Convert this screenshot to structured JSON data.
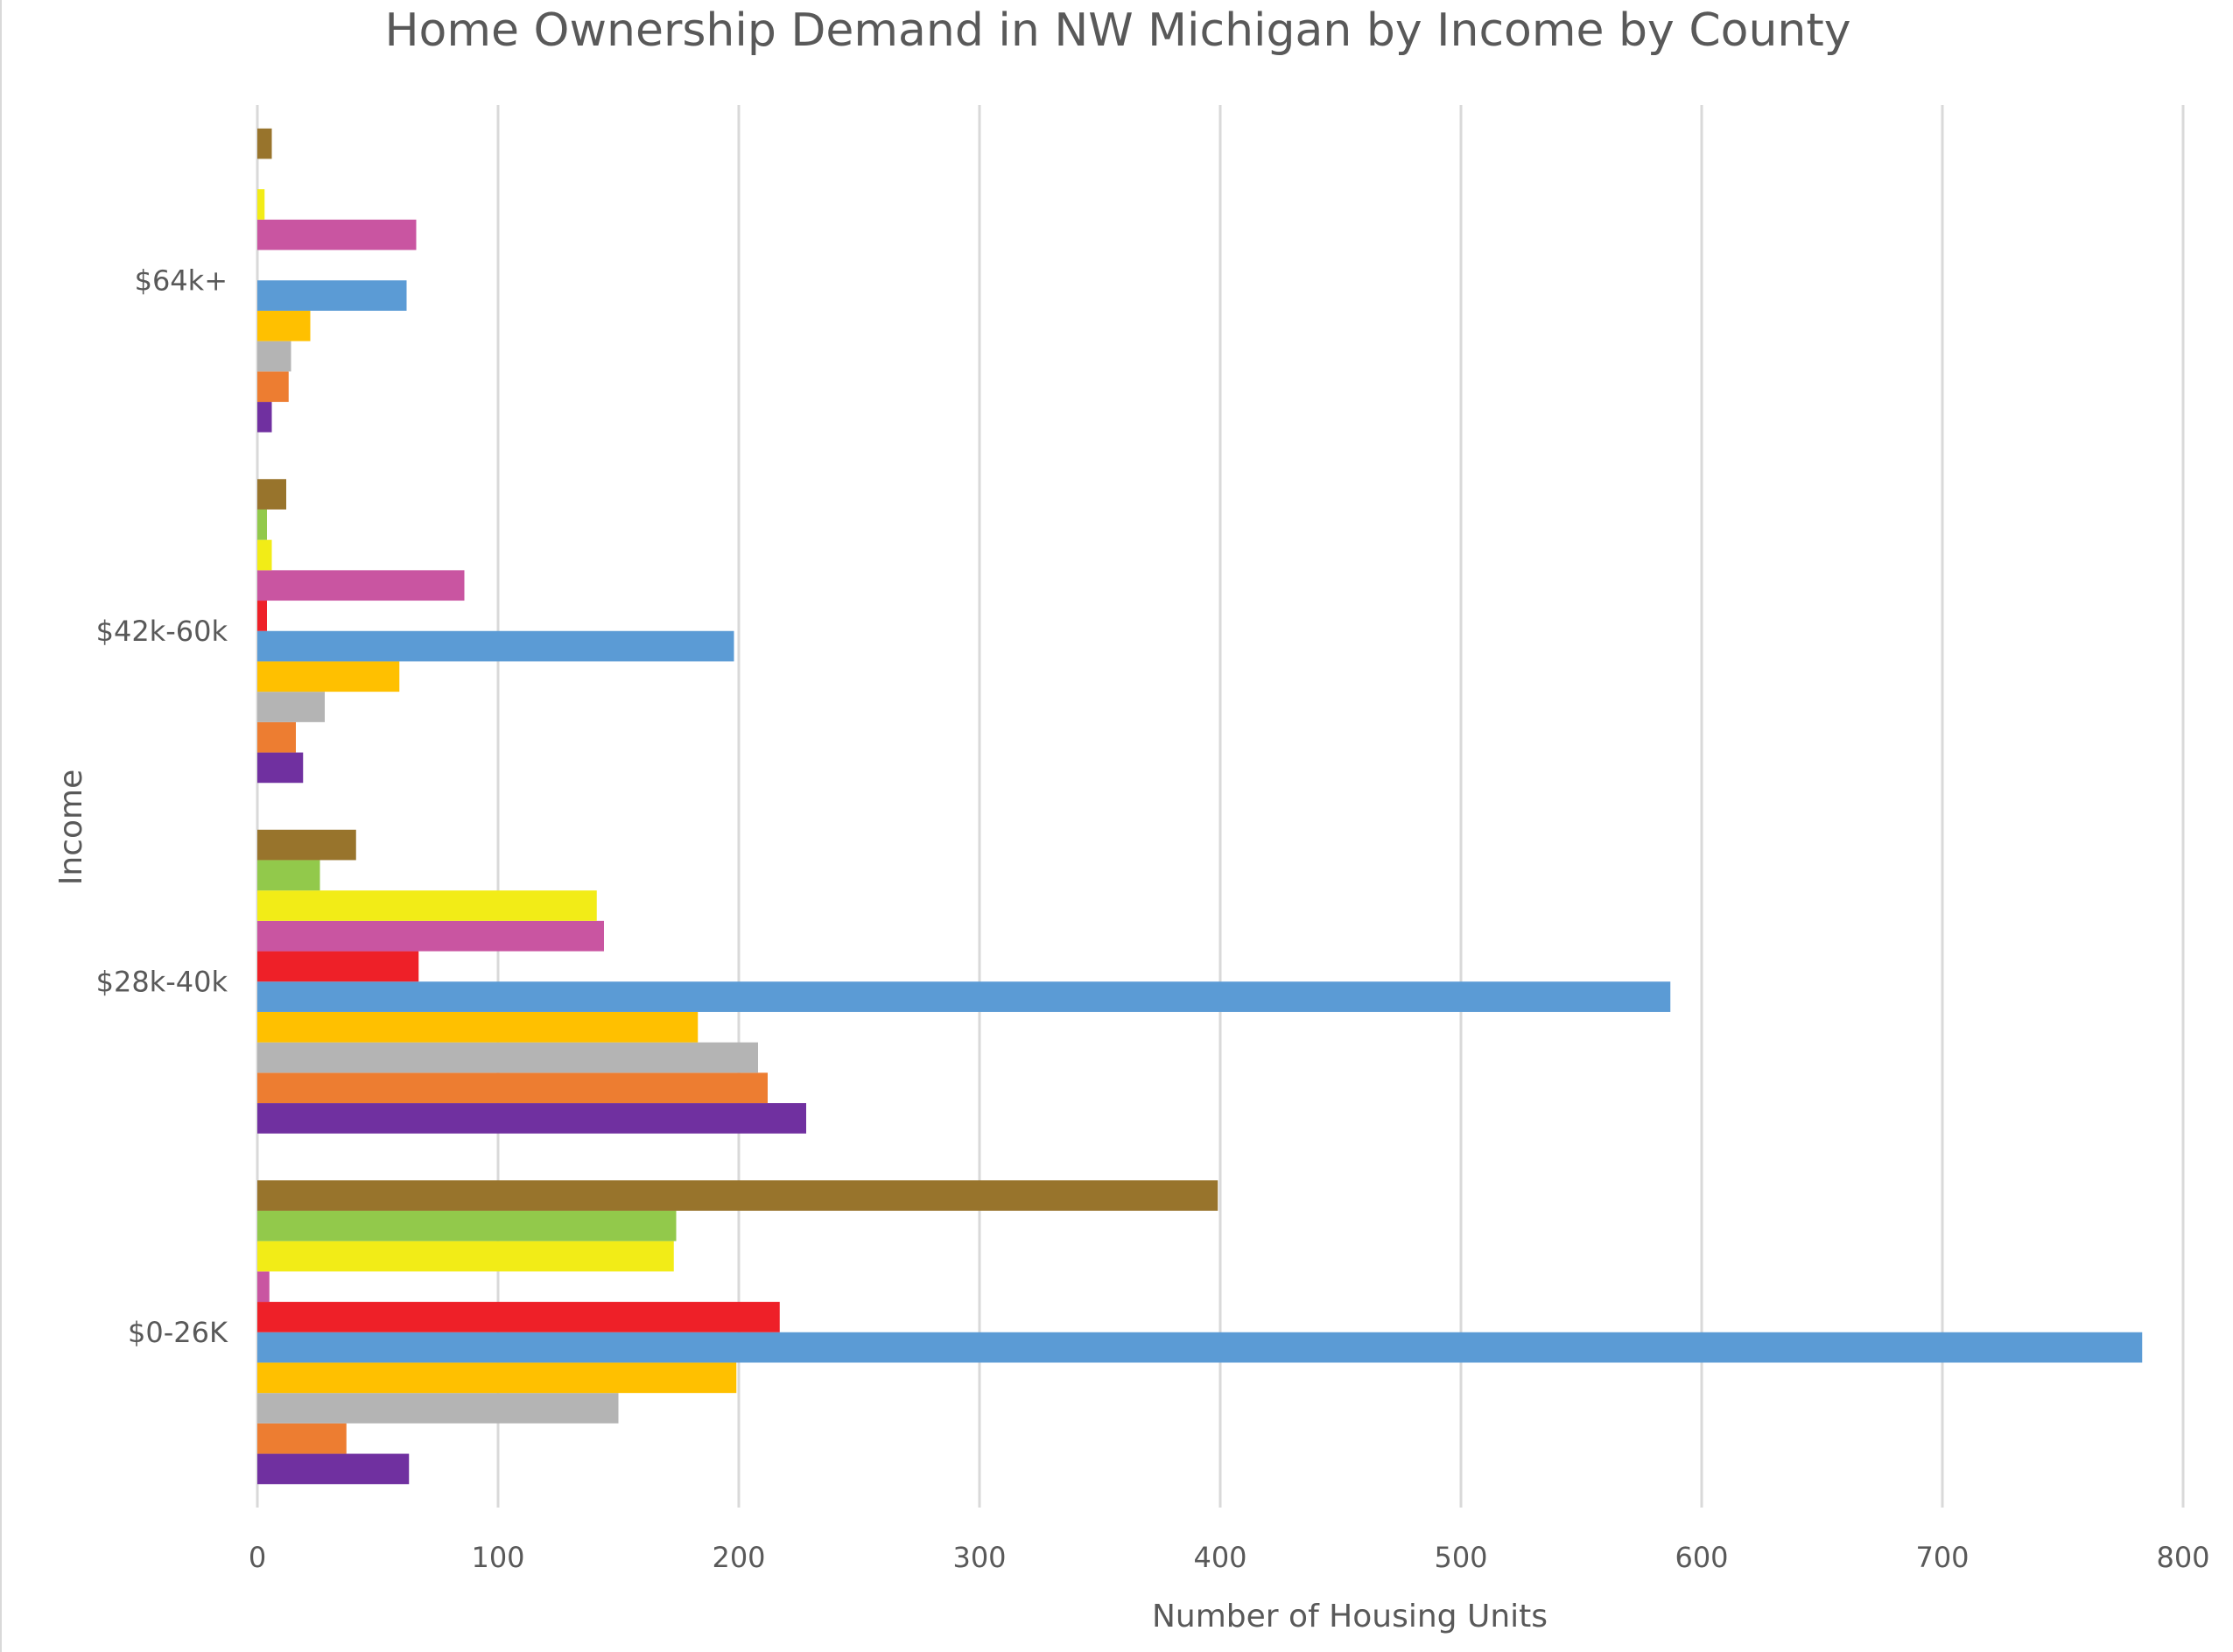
{
  "chart_data": {
    "type": "bar",
    "orientation": "horizontal",
    "title": "Home Ownership Demand in NW Michigan by Income by County",
    "xlabel": "Number of Housing Units",
    "ylabel": "Income",
    "xlim": [
      0,
      800
    ],
    "xticks": [
      0,
      100,
      200,
      300,
      400,
      500,
      600,
      700,
      800
    ],
    "grid": "vertical",
    "legend": "none",
    "categories": [
      "$0-26K",
      "$28k-40k",
      "$42k-60k",
      "$64k+"
    ],
    "series": [
      {
        "color": "#7030A0",
        "values": [
          63,
          228,
          19,
          6
        ]
      },
      {
        "color": "#ED7D31",
        "values": [
          37,
          212,
          16,
          13
        ]
      },
      {
        "color": "#B4B4B4",
        "values": [
          150,
          208,
          28,
          14
        ]
      },
      {
        "color": "#FFC000",
        "values": [
          199,
          183,
          59,
          22
        ]
      },
      {
        "color": "#5B9BD5",
        "values": [
          783,
          587,
          198,
          62
        ]
      },
      {
        "color": "#EE2028",
        "values": [
          217,
          67,
          4,
          0
        ]
      },
      {
        "color": "#C955A1",
        "values": [
          5,
          144,
          86,
          66
        ]
      },
      {
        "color": "#F2EC17",
        "values": [
          173,
          141,
          6,
          3
        ]
      },
      {
        "color": "#92C94B",
        "values": [
          174,
          26,
          4,
          0
        ]
      },
      {
        "color": "#98742C",
        "values": [
          399,
          41,
          12,
          6
        ]
      }
    ]
  }
}
